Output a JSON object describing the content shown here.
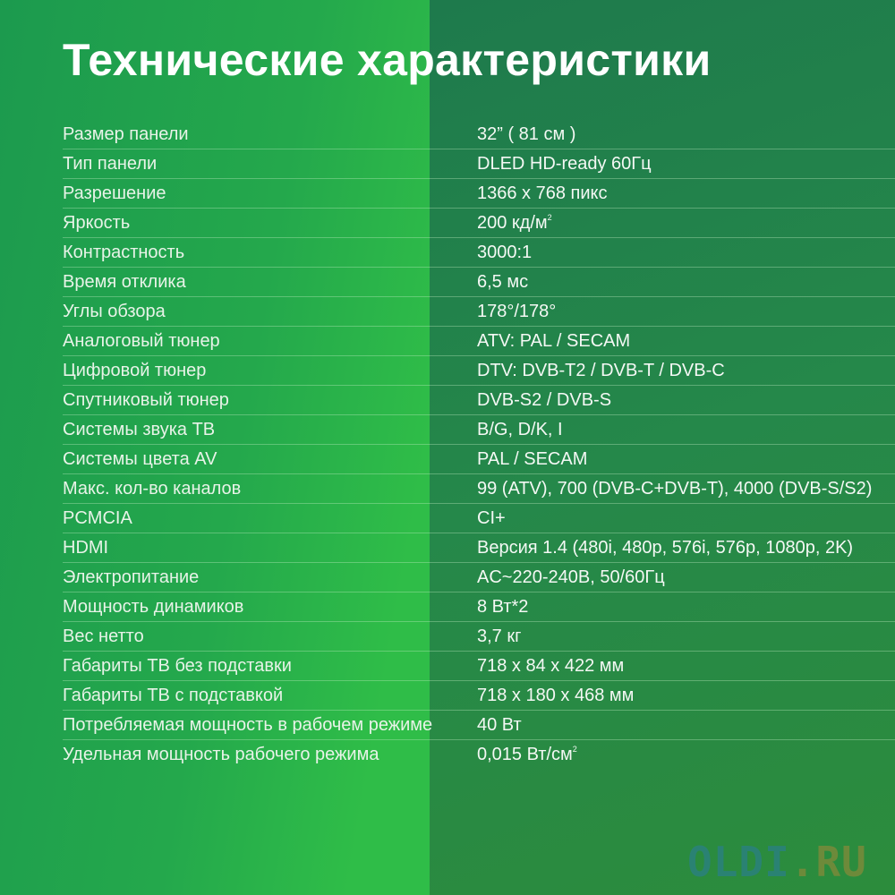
{
  "title": "Технические характеристики",
  "specs": [
    {
      "label": "Размер панели",
      "value": "32” ( 81 см )"
    },
    {
      "label": "Тип панели",
      "value": "DLED HD-ready 60Гц"
    },
    {
      "label": "Разрешение",
      "value": "1366 x 768 пикс"
    },
    {
      "label": "Яркость",
      "value": "200 кд/м",
      "sup": "2"
    },
    {
      "label": "Контрастность",
      "value": "3000:1"
    },
    {
      "label": "Время отклика",
      "value": "6,5 мс"
    },
    {
      "label": "Углы обзора",
      "value": "178°/178°"
    },
    {
      "label": "Аналоговый тюнер",
      "value": "ATV: PAL / SECAM"
    },
    {
      "label": "Цифровой тюнер",
      "value": "DTV: DVB-T2 / DVB-T / DVB-C"
    },
    {
      "label": "Спутниковый тюнер",
      "value": "DVB-S2 / DVB-S"
    },
    {
      "label": "Системы звука ТВ",
      "value": "B/G, D/K, I"
    },
    {
      "label": "Системы цвета AV",
      "value": "PAL / SECAM"
    },
    {
      "label": "Макс. кол-во каналов",
      "value": "99 (ATV), 700 (DVB-C+DVB-T), 4000 (DVB-S/S2)"
    },
    {
      "label": "PCMCIA",
      "value": "CI+"
    },
    {
      "label": "HDMI",
      "value": "Версия 1.4 (480i, 480p, 576i, 576p, 1080p, 2K)"
    },
    {
      "label": "Электропитание",
      "value": "AC~220-240В, 50/60Гц"
    },
    {
      "label": "Мощность динамиков",
      "value": "8 Вт*2"
    },
    {
      "label": "Вес нетто",
      "value": "3,7 кг"
    },
    {
      "label": "Габариты ТВ без подставки",
      "value": "718 x 84 x 422 мм"
    },
    {
      "label": "Габариты ТВ с подставкой",
      "value": "718 x 180 x 468 мм"
    },
    {
      "label": "Потребляемая мощность в рабочем режиме",
      "value": "40 Вт"
    },
    {
      "label": "Удельная мощность рабочего режима",
      "value": "0,015 Вт/см",
      "sup": "2"
    }
  ],
  "watermark": {
    "part1": "OLDI",
    "part2": ".RU"
  }
}
